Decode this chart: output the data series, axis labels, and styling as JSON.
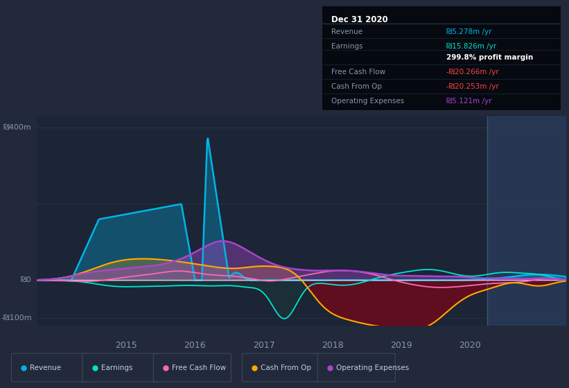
{
  "bg_color": "#22293a",
  "chart_bg": "#1b2536",
  "grid_color": "#2e3d50",
  "text_color": "#8899aa",
  "y_label_400": "₪400m",
  "y_label_0": "₪0",
  "y_label_neg100": "-₪100m",
  "x_ticks": [
    2015,
    2016,
    2017,
    2018,
    2019,
    2020
  ],
  "ylim": [
    -120,
    430
  ],
  "xlim": [
    2013.7,
    2021.4
  ],
  "forecast_start": 2020.25,
  "colors": {
    "revenue": "#00b4e8",
    "earnings": "#00e5cc",
    "free_cash_flow": "#ff69b4",
    "cash_from_op": "#ffaa00",
    "operating_expenses": "#aa44cc"
  },
  "info_box": {
    "title": "Dec 31 2020",
    "rows": [
      {
        "label": "Revenue",
        "value": "₪5.278m /yr",
        "value_color": "#00b4e8"
      },
      {
        "label": "Earnings",
        "value": "₪15.826m /yr",
        "value_color": "#00e5cc"
      },
      {
        "label": "",
        "value": "299.8% profit margin",
        "value_color": "#ffffff",
        "bold": true
      },
      {
        "label": "Free Cash Flow",
        "value": "-₪20.266m /yr",
        "value_color": "#ff4444"
      },
      {
        "label": "Cash From Op",
        "value": "-₪20.253m /yr",
        "value_color": "#ff4444"
      },
      {
        "label": "Operating Expenses",
        "value": "₪5.121m /yr",
        "value_color": "#aa44cc"
      }
    ]
  },
  "legend_items": [
    {
      "label": "Revenue",
      "color": "#00b4e8"
    },
    {
      "label": "Earnings",
      "color": "#00e5cc"
    },
    {
      "label": "Free Cash Flow",
      "color": "#ff69b4"
    },
    {
      "label": "Cash From Op",
      "color": "#ffaa00"
    },
    {
      "label": "Operating Expenses",
      "color": "#aa44cc"
    }
  ]
}
